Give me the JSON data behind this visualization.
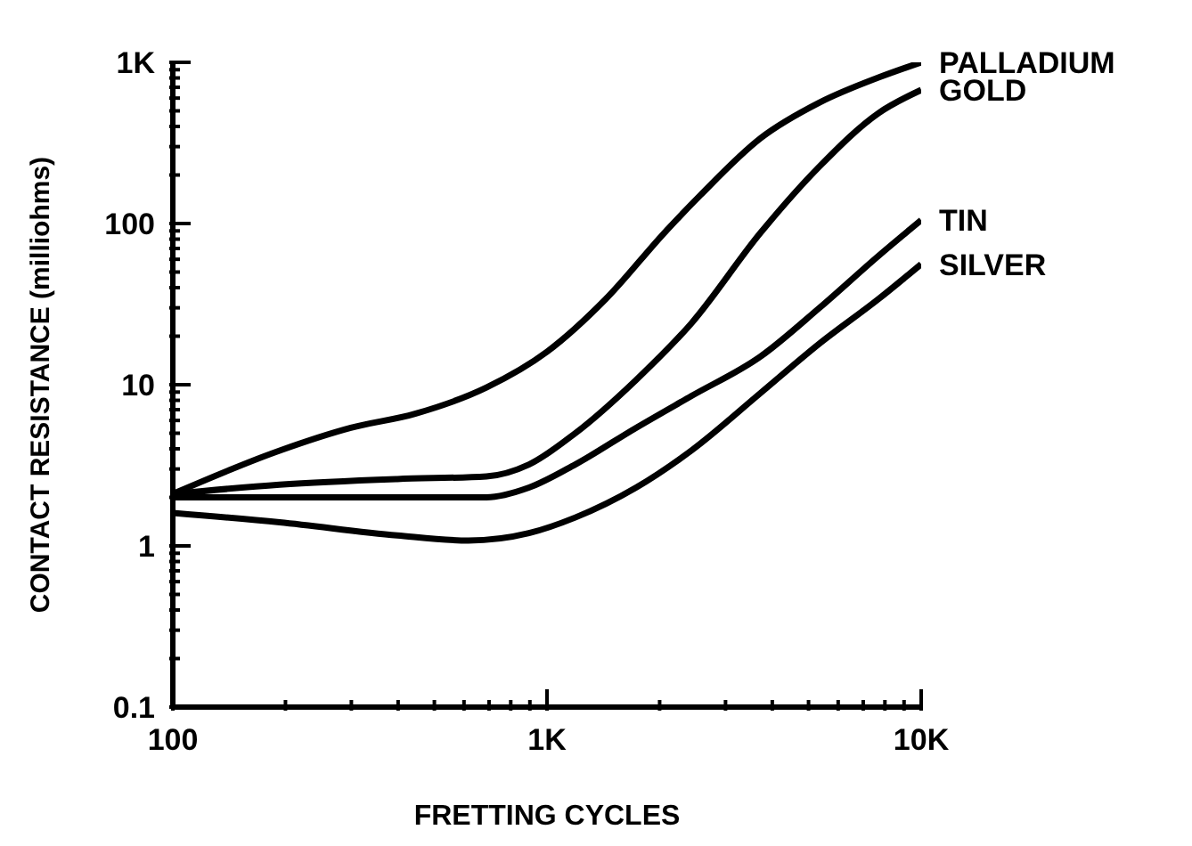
{
  "chart_data": {
    "type": "line",
    "xlabel": "FRETTING CYCLES",
    "ylabel": "CONTACT RESISTANCE (milliohms)",
    "log": "xy",
    "marker": "none",
    "xlim": [
      100,
      10000
    ],
    "ylim": [
      0.1,
      1000
    ],
    "xticks": [
      {
        "value": 100,
        "label": "100"
      },
      {
        "value": 200,
        "label": null
      },
      {
        "value": 300,
        "label": null
      },
      {
        "value": 400,
        "label": null
      },
      {
        "value": 500,
        "label": null
      },
      {
        "value": 600,
        "label": null
      },
      {
        "value": 700,
        "label": null
      },
      {
        "value": 800,
        "label": null
      },
      {
        "value": 900,
        "label": null
      },
      {
        "value": 1000,
        "label": "1K"
      },
      {
        "value": 2000,
        "label": null
      },
      {
        "value": 3000,
        "label": null
      },
      {
        "value": 4000,
        "label": null
      },
      {
        "value": 5000,
        "label": null
      },
      {
        "value": 6000,
        "label": null
      },
      {
        "value": 7000,
        "label": null
      },
      {
        "value": 8000,
        "label": null
      },
      {
        "value": 9000,
        "label": null
      },
      {
        "value": 10000,
        "label": "10K"
      }
    ],
    "yticks": [
      {
        "value": 0.1,
        "label": "0.1"
      },
      {
        "value": 0.2,
        "label": null
      },
      {
        "value": 0.3,
        "label": null
      },
      {
        "value": 0.4,
        "label": null
      },
      {
        "value": 0.5,
        "label": null
      },
      {
        "value": 0.6,
        "label": null
      },
      {
        "value": 0.7,
        "label": null
      },
      {
        "value": 0.8,
        "label": null
      },
      {
        "value": 0.9,
        "label": null
      },
      {
        "value": 1,
        "label": "1"
      },
      {
        "value": 2,
        "label": null
      },
      {
        "value": 3,
        "label": null
      },
      {
        "value": 4,
        "label": null
      },
      {
        "value": 5,
        "label": null
      },
      {
        "value": 6,
        "label": null
      },
      {
        "value": 7,
        "label": null
      },
      {
        "value": 8,
        "label": null
      },
      {
        "value": 9,
        "label": null
      },
      {
        "value": 10,
        "label": "10"
      },
      {
        "value": 20,
        "label": null
      },
      {
        "value": 30,
        "label": null
      },
      {
        "value": 40,
        "label": null
      },
      {
        "value": 50,
        "label": null
      },
      {
        "value": 60,
        "label": null
      },
      {
        "value": 70,
        "label": null
      },
      {
        "value": 80,
        "label": null
      },
      {
        "value": 90,
        "label": null
      },
      {
        "value": 100,
        "label": "100"
      },
      {
        "value": 200,
        "label": null
      },
      {
        "value": 300,
        "label": null
      },
      {
        "value": 400,
        "label": null
      },
      {
        "value": 500,
        "label": null
      },
      {
        "value": 600,
        "label": null
      },
      {
        "value": 700,
        "label": null
      },
      {
        "value": 800,
        "label": null
      },
      {
        "value": 900,
        "label": null
      },
      {
        "value": 1000,
        "label": "1K"
      }
    ],
    "series": [
      {
        "name": "PALLADIUM",
        "color": "#000000",
        "x": [
          100,
          193,
          299,
          444,
          689,
          1000,
          1436,
          2063,
          2570,
          3727,
          5350,
          7690,
          10000
        ],
        "values": [
          2.1,
          3.9,
          5.4,
          6.6,
          9.6,
          16,
          34,
          88,
          150,
          339,
          563,
          805,
          1000
        ]
      },
      {
        "name": "GOLD",
        "color": "#000000",
        "x": [
          100,
          193,
          398,
          689,
          895,
          1190,
          1730,
          2430,
          3727,
          5350,
          7690,
          10000
        ],
        "values": [
          2.1,
          2.4,
          2.6,
          2.7,
          3.2,
          5,
          10.7,
          24,
          88,
          226,
          484,
          674
        ]
      },
      {
        "name": "TIN",
        "color": "#000000",
        "x": [
          100,
          277,
          689,
          895,
          1190,
          1730,
          2430,
          3727,
          5350,
          7690,
          10000
        ],
        "values": [
          2,
          2,
          2,
          2.3,
          3.2,
          5.4,
          8.5,
          15,
          30,
          63,
          105
        ]
      },
      {
        "name": "SILVER",
        "color": "#000000",
        "x": [
          100,
          193,
          398,
          617,
          895,
          1190,
          1730,
          2430,
          3727,
          5350,
          7690,
          10000
        ],
        "values": [
          1.6,
          1.4,
          1.16,
          1.08,
          1.2,
          1.5,
          2.3,
          3.9,
          8.9,
          18,
          34,
          56
        ]
      }
    ]
  }
}
